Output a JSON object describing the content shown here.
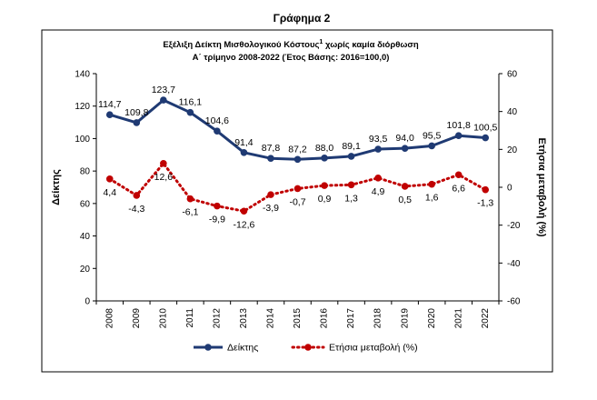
{
  "figure_title": "Γράφημα 2",
  "chart_data": {
    "type": "line",
    "title_line1_main": "Εξέλιξη Δείκτη Μισθολογικού Κόστους",
    "title_line1_sup": "1",
    "title_line1_rest": " χωρίς καμία διόρθωση",
    "title_line2": "Α΄ τρίμηνο 2008-2022  (Έτος Βάσης: 2016=100,0)",
    "categories": [
      "2008",
      "2009",
      "2010",
      "2011",
      "2012",
      "2013",
      "2014",
      "2015",
      "2016",
      "2017",
      "2018",
      "2019",
      "2020",
      "2021",
      "2022"
    ],
    "series": [
      {
        "name": "Δείκτης",
        "axis": "left",
        "color": "#1f3a73",
        "style": "solid",
        "values": [
          114.7,
          109.8,
          123.7,
          116.1,
          104.6,
          91.4,
          87.8,
          87.2,
          88.0,
          89.1,
          93.5,
          94.0,
          95.5,
          101.8,
          100.5
        ],
        "labels": [
          "114,7",
          "109,8",
          "123,7",
          "116,1",
          "104,6",
          "91,4",
          "87,8",
          "87,2",
          "88,0",
          "89,1",
          "93,5",
          "94,0",
          "95,5",
          "101,8",
          "100,5"
        ]
      },
      {
        "name": "Ετήσια μεταβολή (%)",
        "axis": "right",
        "color": "#c00000",
        "style": "dotted",
        "values": [
          4.4,
          -4.3,
          12.6,
          -6.1,
          -9.9,
          -12.6,
          -3.9,
          -0.7,
          0.9,
          1.3,
          4.9,
          0.5,
          1.6,
          6.6,
          -1.3
        ],
        "labels": [
          "4,4",
          "-4,3",
          "12,6",
          "-6,1",
          "-9,9",
          "-12,6",
          "-3,9",
          "-0,7",
          "0,9",
          "1,3",
          "4,9",
          "0,5",
          "1,6",
          "6,6",
          "-1,3"
        ]
      }
    ],
    "ylabel": "Δείκτης",
    "ylim": [
      0,
      140
    ],
    "yticks": [
      0,
      20,
      40,
      60,
      80,
      100,
      120,
      140
    ],
    "y2label": "Ετήσια μεταβολή (%)",
    "y2lim": [
      -60,
      60
    ],
    "y2ticks": [
      -60,
      -40,
      -20,
      0,
      20,
      40,
      60
    ],
    "grid": false,
    "legend": "bottom"
  }
}
